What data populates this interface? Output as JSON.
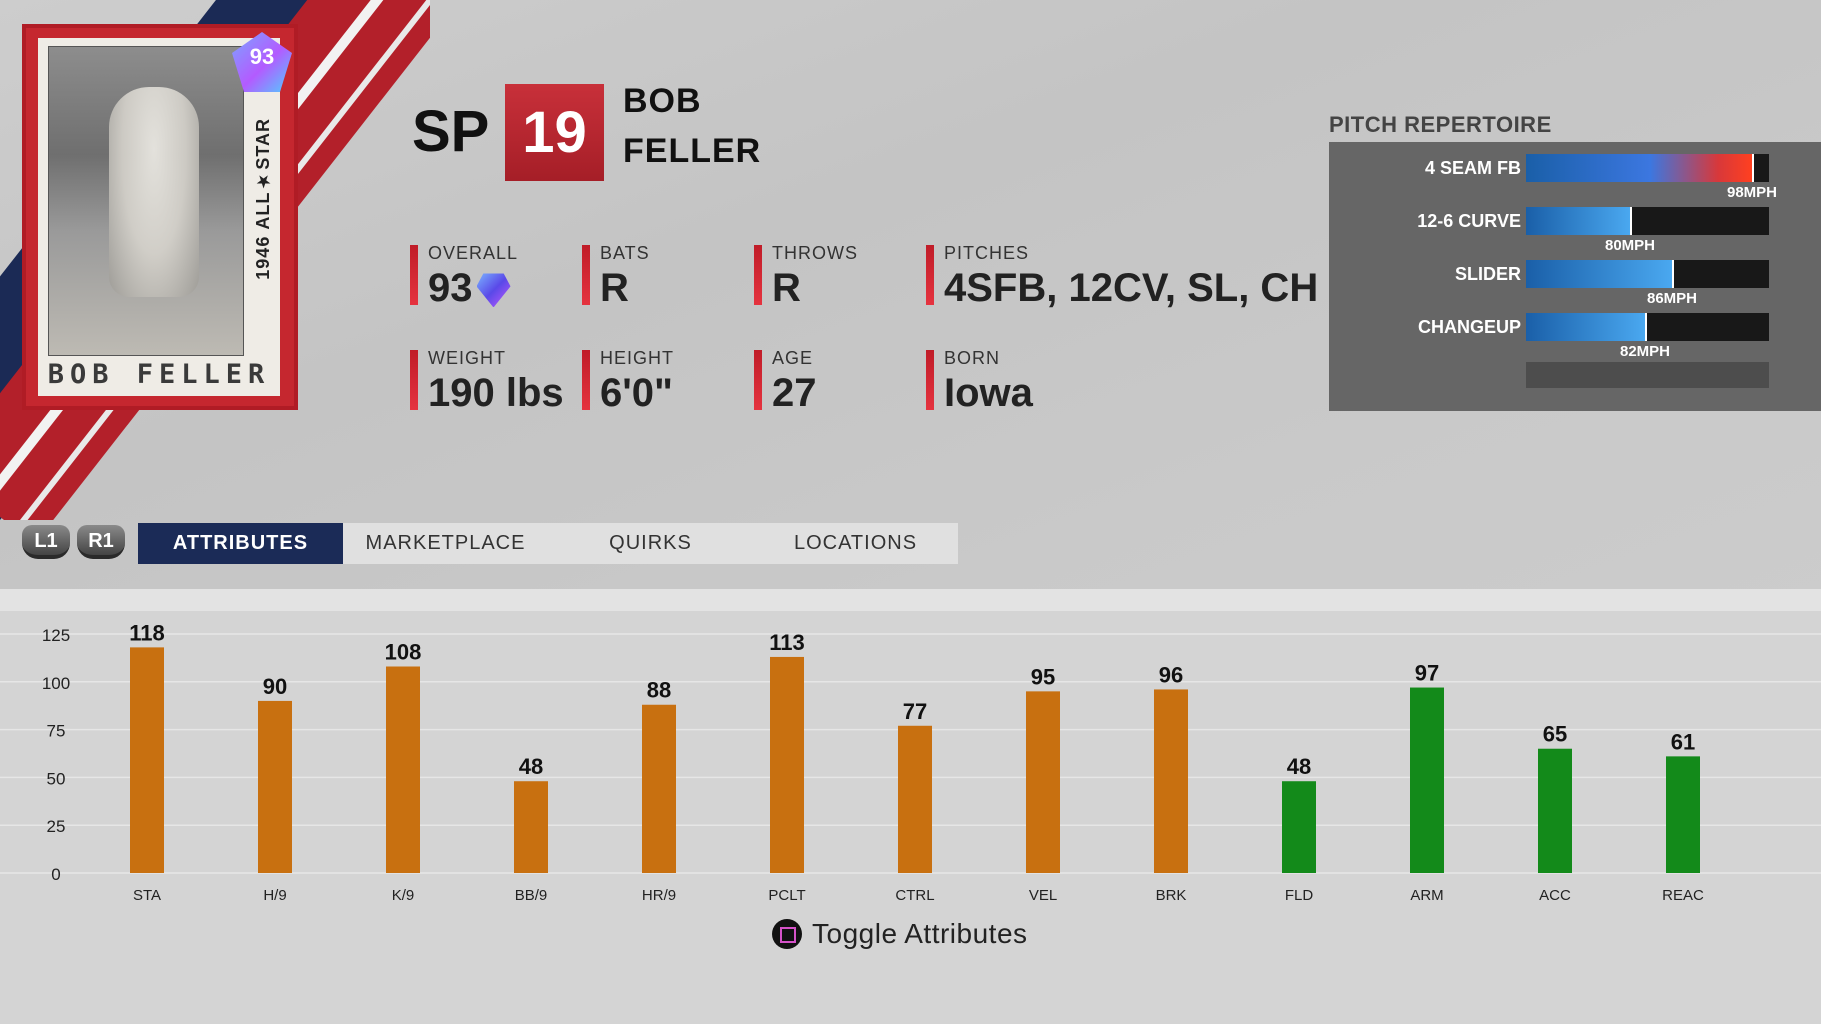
{
  "card": {
    "overall_badge": "93",
    "series_text": "ALL★STAR",
    "year": "1946",
    "name": "BOB FELLER"
  },
  "player": {
    "position": "SP",
    "number": "19",
    "first_name": "BOB",
    "last_name": "FELLER"
  },
  "stats": [
    {
      "label": "OVERALL",
      "value": "93"
    },
    {
      "label": "BATS",
      "value": "R"
    },
    {
      "label": "THROWS",
      "value": "R"
    },
    {
      "label": "PITCHES",
      "value": "4SFB, 12CV, SL, CH"
    },
    {
      "label": "WEIGHT",
      "value": "190 lbs"
    },
    {
      "label": "HEIGHT",
      "value": "6'0\""
    },
    {
      "label": "AGE",
      "value": "27"
    },
    {
      "label": "BORN",
      "value": "Iowa"
    }
  ],
  "repertoire": {
    "title": "PITCH REPERTOIRE",
    "pitches": [
      {
        "name": "4 SEAM FB",
        "speed": "98MPH",
        "level": 0.93
      },
      {
        "name": "12-6 CURVE",
        "speed": "80MPH",
        "level": 0.43
      },
      {
        "name": "SLIDER",
        "speed": "86MPH",
        "level": 0.6
      },
      {
        "name": "CHANGEUP",
        "speed": "82MPH",
        "level": 0.49
      }
    ]
  },
  "nav": {
    "l1": "L1",
    "r1": "R1",
    "tabs": [
      "ATTRIBUTES",
      "MARKETPLACE",
      "QUIRKS",
      "LOCATIONS"
    ],
    "active_tab": "ATTRIBUTES"
  },
  "chart_data": {
    "type": "bar",
    "categories": [
      "STA",
      "H/9",
      "K/9",
      "BB/9",
      "HR/9",
      "PCLT",
      "CTRL",
      "VEL",
      "BRK",
      "FLD",
      "ARM",
      "ACC",
      "REAC"
    ],
    "values": [
      118,
      90,
      108,
      48,
      88,
      113,
      77,
      95,
      96,
      48,
      97,
      65,
      61
    ],
    "bar_colors": [
      "#c87010",
      "#c87010",
      "#c87010",
      "#c87010",
      "#c87010",
      "#c87010",
      "#c87010",
      "#c87010",
      "#c87010",
      "#138a1a",
      "#138a1a",
      "#138a1a",
      "#138a1a"
    ],
    "yticks": [
      0,
      25,
      50,
      75,
      100,
      125
    ],
    "ylim": [
      0,
      125
    ],
    "grid": true
  },
  "footer": {
    "toggle_label": "Toggle Attributes",
    "button_icon": "square-button-icon"
  }
}
